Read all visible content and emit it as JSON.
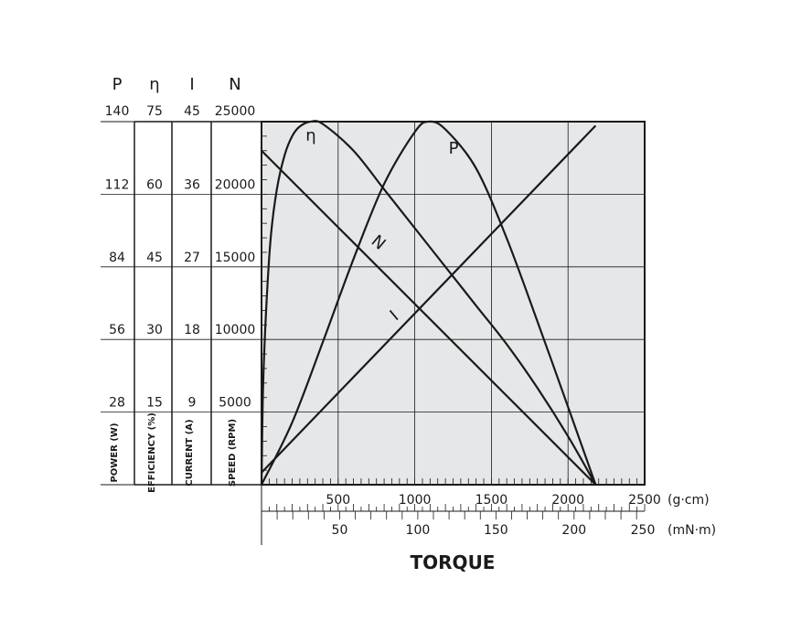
{
  "chart_data": {
    "type": "line",
    "title": "TORQUE",
    "left_axes": [
      {
        "symbol": "P",
        "label": "POWER (W)",
        "ticks": [
          "140",
          "112",
          "84",
          "56",
          "28"
        ],
        "max": 140
      },
      {
        "symbol": "η",
        "label": "EFFICIENCY (%)",
        "ticks": [
          "75",
          "60",
          "45",
          "30",
          "15"
        ],
        "max": 75
      },
      {
        "symbol": "I",
        "label": "CURRENT (A)",
        "ticks": [
          "45",
          "36",
          "27",
          "18",
          "9"
        ],
        "max": 45
      },
      {
        "symbol": "N",
        "label": "SPEED (RPM)",
        "ticks": [
          "25000",
          "20000",
          "15000",
          "10000",
          "5000"
        ],
        "max": 25000
      }
    ],
    "x_axis_primary": {
      "unit": "(g·cm)",
      "ticks": [
        "500",
        "1000",
        "1500",
        "2000",
        "2500"
      ],
      "tick_values": [
        500,
        1000,
        1500,
        2000,
        2500
      ],
      "xlim": [
        0,
        2500
      ]
    },
    "x_axis_secondary": {
      "unit": "(mN·m)",
      "ticks": [
        "50",
        "100",
        "150",
        "200",
        "250"
      ],
      "tick_values": [
        50,
        100,
        150,
        200,
        250
      ],
      "xlim": [
        0,
        250
      ]
    },
    "series": [
      {
        "name": "N",
        "axis": "N",
        "x": [
          0,
          2180
        ],
        "y": [
          23000,
          0
        ]
      },
      {
        "name": "I",
        "axis": "I",
        "x": [
          0,
          2180
        ],
        "y": [
          1.5,
          44.5
        ]
      },
      {
        "name": "P",
        "axis": "P",
        "x": [
          0,
          200,
          400,
          600,
          800,
          1000,
          1090,
          1200,
          1400,
          1600,
          1800,
          2000,
          2180
        ],
        "y": [
          0,
          24,
          55,
          87,
          116,
          136,
          140,
          137,
          122,
          95,
          63,
          30,
          0
        ]
      },
      {
        "name": "η",
        "axis": "η",
        "x": [
          0,
          10,
          30,
          60,
          100,
          150,
          200,
          250,
          320,
          400,
          600,
          800,
          1000,
          1200,
          1400,
          1600,
          1800,
          2000,
          2180
        ],
        "y": [
          0,
          20,
          36,
          51,
          61,
          68,
          72,
          74,
          75,
          74.5,
          69,
          61,
          53,
          45,
          37,
          29,
          20,
          10,
          0
        ]
      }
    ],
    "grid": true,
    "background": "#e6e7e8"
  }
}
